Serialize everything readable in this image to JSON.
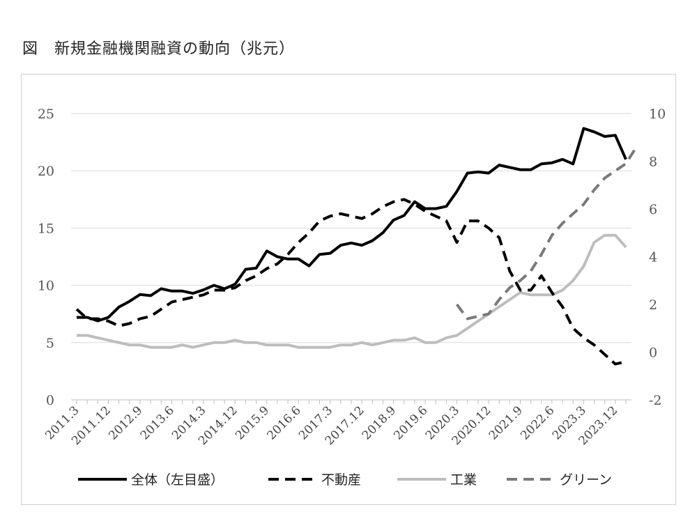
{
  "title": "図　新規金融機関融資の動向（兆元）",
  "chart_data": {
    "type": "line",
    "title": "図　新規金融機関融資の動向（兆元）",
    "left_axis": {
      "ylim": [
        0,
        25
      ],
      "ticks": [
        "0",
        "5",
        "10",
        "15",
        "20",
        "25"
      ]
    },
    "right_axis": {
      "ylim": [
        -2,
        10
      ],
      "ticks": [
        "-2",
        "0",
        "2",
        "4",
        "6",
        "8",
        "10"
      ]
    },
    "grid": "horizontal",
    "legend_position": "bottom",
    "x_tick_labels": [
      "2011.3",
      "2011.12",
      "2012.9",
      "2013.6",
      "2014.3",
      "2014.12",
      "2015.9",
      "2016.6",
      "2017.3",
      "2017.12",
      "2018.9",
      "2019.6",
      "2020.3",
      "2020.12",
      "2021.9",
      "2022.6",
      "2023.3",
      "2023.12"
    ],
    "x_quarters": [
      "2011.3",
      "2011.6",
      "2011.9",
      "2011.12",
      "2012.3",
      "2012.6",
      "2012.9",
      "2012.12",
      "2013.3",
      "2013.6",
      "2013.9",
      "2013.12",
      "2014.3",
      "2014.6",
      "2014.9",
      "2014.12",
      "2015.3",
      "2015.6",
      "2015.9",
      "2015.12",
      "2016.3",
      "2016.6",
      "2016.9",
      "2016.12",
      "2017.3",
      "2017.6",
      "2017.9",
      "2017.12",
      "2018.3",
      "2018.6",
      "2018.9",
      "2018.12",
      "2019.3",
      "2019.6",
      "2019.9",
      "2019.12",
      "2020.3",
      "2020.6",
      "2020.9",
      "2020.12",
      "2021.3",
      "2021.6",
      "2021.9",
      "2021.12",
      "2022.3",
      "2022.6",
      "2022.9",
      "2022.12",
      "2023.3",
      "2023.6",
      "2023.9",
      "2023.12",
      "2024.3"
    ],
    "series": [
      {
        "name": "全体（左目盛）",
        "axis": "left",
        "color": "#000000",
        "dash": "solid",
        "start_index": 0,
        "values": [
          7.2,
          7.2,
          6.9,
          7.2,
          8.1,
          8.6,
          9.2,
          9.1,
          9.7,
          9.5,
          9.5,
          9.3,
          9.6,
          10.0,
          9.7,
          10.1,
          11.4,
          11.5,
          13.0,
          12.5,
          12.3,
          12.3,
          11.7,
          12.7,
          12.8,
          13.5,
          13.7,
          13.5,
          13.9,
          14.6,
          15.7,
          16.1,
          17.3,
          16.7,
          16.7,
          16.9,
          18.2,
          19.8,
          19.9,
          19.8,
          20.5,
          20.3,
          20.1,
          20.1,
          20.6,
          20.7,
          21.0,
          20.6,
          23.7,
          23.4,
          23.0,
          23.1,
          21.0
        ]
      },
      {
        "name": "不動産",
        "axis": "right",
        "color": "#000000",
        "dash": "dashed",
        "start_index": 0,
        "values": [
          1.8,
          1.4,
          1.4,
          1.3,
          1.1,
          1.2,
          1.4,
          1.5,
          1.8,
          2.1,
          2.2,
          2.3,
          2.4,
          2.6,
          2.6,
          2.7,
          3.0,
          3.2,
          3.5,
          3.7,
          4.1,
          4.6,
          5.0,
          5.5,
          5.7,
          5.8,
          5.7,
          5.6,
          5.8,
          6.1,
          6.3,
          6.4,
          6.2,
          5.9,
          5.7,
          5.5,
          4.6,
          5.5,
          5.5,
          5.2,
          4.8,
          3.4,
          2.6,
          2.6,
          3.2,
          2.5,
          1.9,
          1.0,
          0.6,
          0.3,
          -0.1,
          -0.5,
          -0.4
        ]
      },
      {
        "name": "工業",
        "axis": "right",
        "color": "#bdbdbd",
        "dash": "solid",
        "start_index": 0,
        "values": [
          0.7,
          0.7,
          0.6,
          0.5,
          0.4,
          0.3,
          0.3,
          0.2,
          0.2,
          0.2,
          0.3,
          0.2,
          0.3,
          0.4,
          0.4,
          0.5,
          0.4,
          0.4,
          0.3,
          0.3,
          0.3,
          0.2,
          0.2,
          0.2,
          0.2,
          0.3,
          0.3,
          0.4,
          0.3,
          0.4,
          0.5,
          0.5,
          0.6,
          0.4,
          0.4,
          0.6,
          0.7,
          1.0,
          1.3,
          1.6,
          1.9,
          2.2,
          2.5,
          2.4,
          2.4,
          2.4,
          2.6,
          3.0,
          3.6,
          4.6,
          4.9,
          4.9,
          4.4
        ]
      },
      {
        "name": "グリーン",
        "axis": "right",
        "color": "#7a7a7a",
        "dash": "dashed",
        "start_index": 36,
        "values": [
          2.0,
          1.4,
          1.5,
          1.6,
          2.2,
          2.7,
          3.0,
          3.4,
          4.1,
          4.9,
          5.4,
          5.8,
          6.2,
          6.8,
          7.3,
          7.6,
          7.9,
          8.6
        ]
      }
    ]
  }
}
